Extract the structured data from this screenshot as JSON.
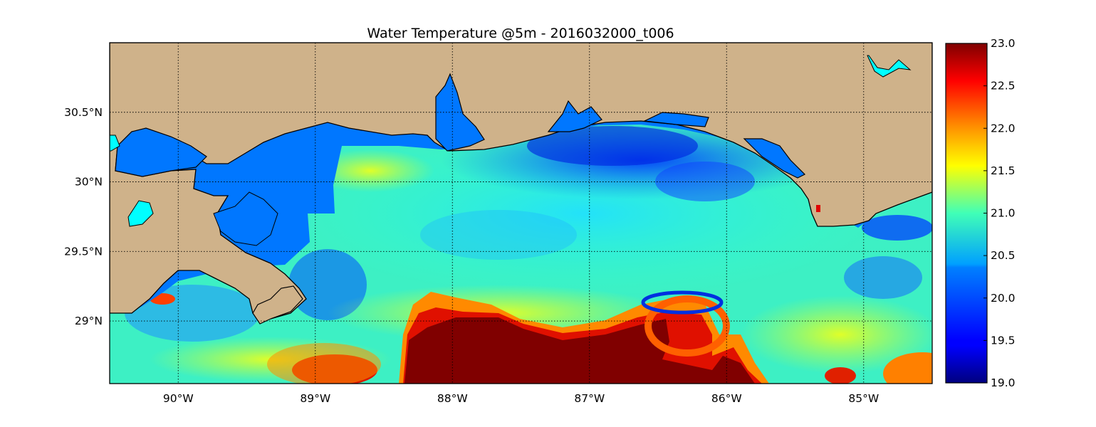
{
  "chart_data": {
    "type": "heatmap",
    "title": "Water Temperature @5m - 2016032000_t006",
    "xlabel": "",
    "ylabel": "",
    "xlim": [
      -90.5,
      -84.5
    ],
    "ylim": [
      28.55,
      31.0
    ],
    "x_ticks": [
      {
        "value": -90,
        "label": "90°W"
      },
      {
        "value": -89,
        "label": "89°W"
      },
      {
        "value": -88,
        "label": "88°W"
      },
      {
        "value": -87,
        "label": "87°W"
      },
      {
        "value": -86,
        "label": "86°W"
      },
      {
        "value": -85,
        "label": "85°W"
      }
    ],
    "y_ticks": [
      {
        "value": 29.0,
        "label": "29°N"
      },
      {
        "value": 29.5,
        "label": "29.5°N"
      },
      {
        "value": 30.0,
        "label": "30°N"
      },
      {
        "value": 30.5,
        "label": "30.5°N"
      }
    ],
    "grid": true,
    "grid_style": "dotted",
    "land_color": "#cfb28a",
    "inland_water_color": "#0077ff",
    "colormap": "jet",
    "colorbar": {
      "min": 19.0,
      "max": 23.0,
      "ticks": [
        {
          "value": 23.0,
          "label": "23.0"
        },
        {
          "value": 22.5,
          "label": "22.5"
        },
        {
          "value": 22.0,
          "label": "22.0"
        },
        {
          "value": 21.5,
          "label": "21.5"
        },
        {
          "value": 21.0,
          "label": "21.0"
        },
        {
          "value": 20.5,
          "label": "20.5"
        },
        {
          "value": 20.0,
          "label": "20.0"
        },
        {
          "value": 19.5,
          "label": "19.5"
        },
        {
          "value": 19.0,
          "label": "19.0"
        }
      ]
    },
    "field_regions": [
      {
        "name": "nearshore-cold-band",
        "lon": [
          -87.6,
          -85.6
        ],
        "lat": [
          29.95,
          30.4
        ],
        "value": 19.7
      },
      {
        "name": "apalachicola-cool-patch",
        "lon": [
          -85.3,
          -84.7
        ],
        "lat": [
          29.5,
          29.8
        ],
        "value": 19.8
      },
      {
        "name": "shelf-mid-water",
        "lon": [
          -89.0,
          -84.5
        ],
        "lat": [
          29.3,
          29.9
        ],
        "value": 20.6
      },
      {
        "name": "warm-loop-current-core",
        "lon": [
          -88.3,
          -86.1
        ],
        "lat": [
          28.55,
          29.05
        ],
        "value": 23.0
      },
      {
        "name": "eddy-warm-ring",
        "lon": [
          -86.7,
          -86.1
        ],
        "lat": [
          28.9,
          29.15
        ],
        "value": 22.3
      },
      {
        "name": "southwest-warm-patch",
        "lon": [
          -89.1,
          -88.6
        ],
        "lat": [
          28.55,
          28.75
        ],
        "value": 22.6
      },
      {
        "name": "southeast-warm-edge",
        "lon": [
          -84.9,
          -84.5
        ],
        "lat": [
          28.55,
          28.85
        ],
        "value": 22.0
      }
    ]
  }
}
